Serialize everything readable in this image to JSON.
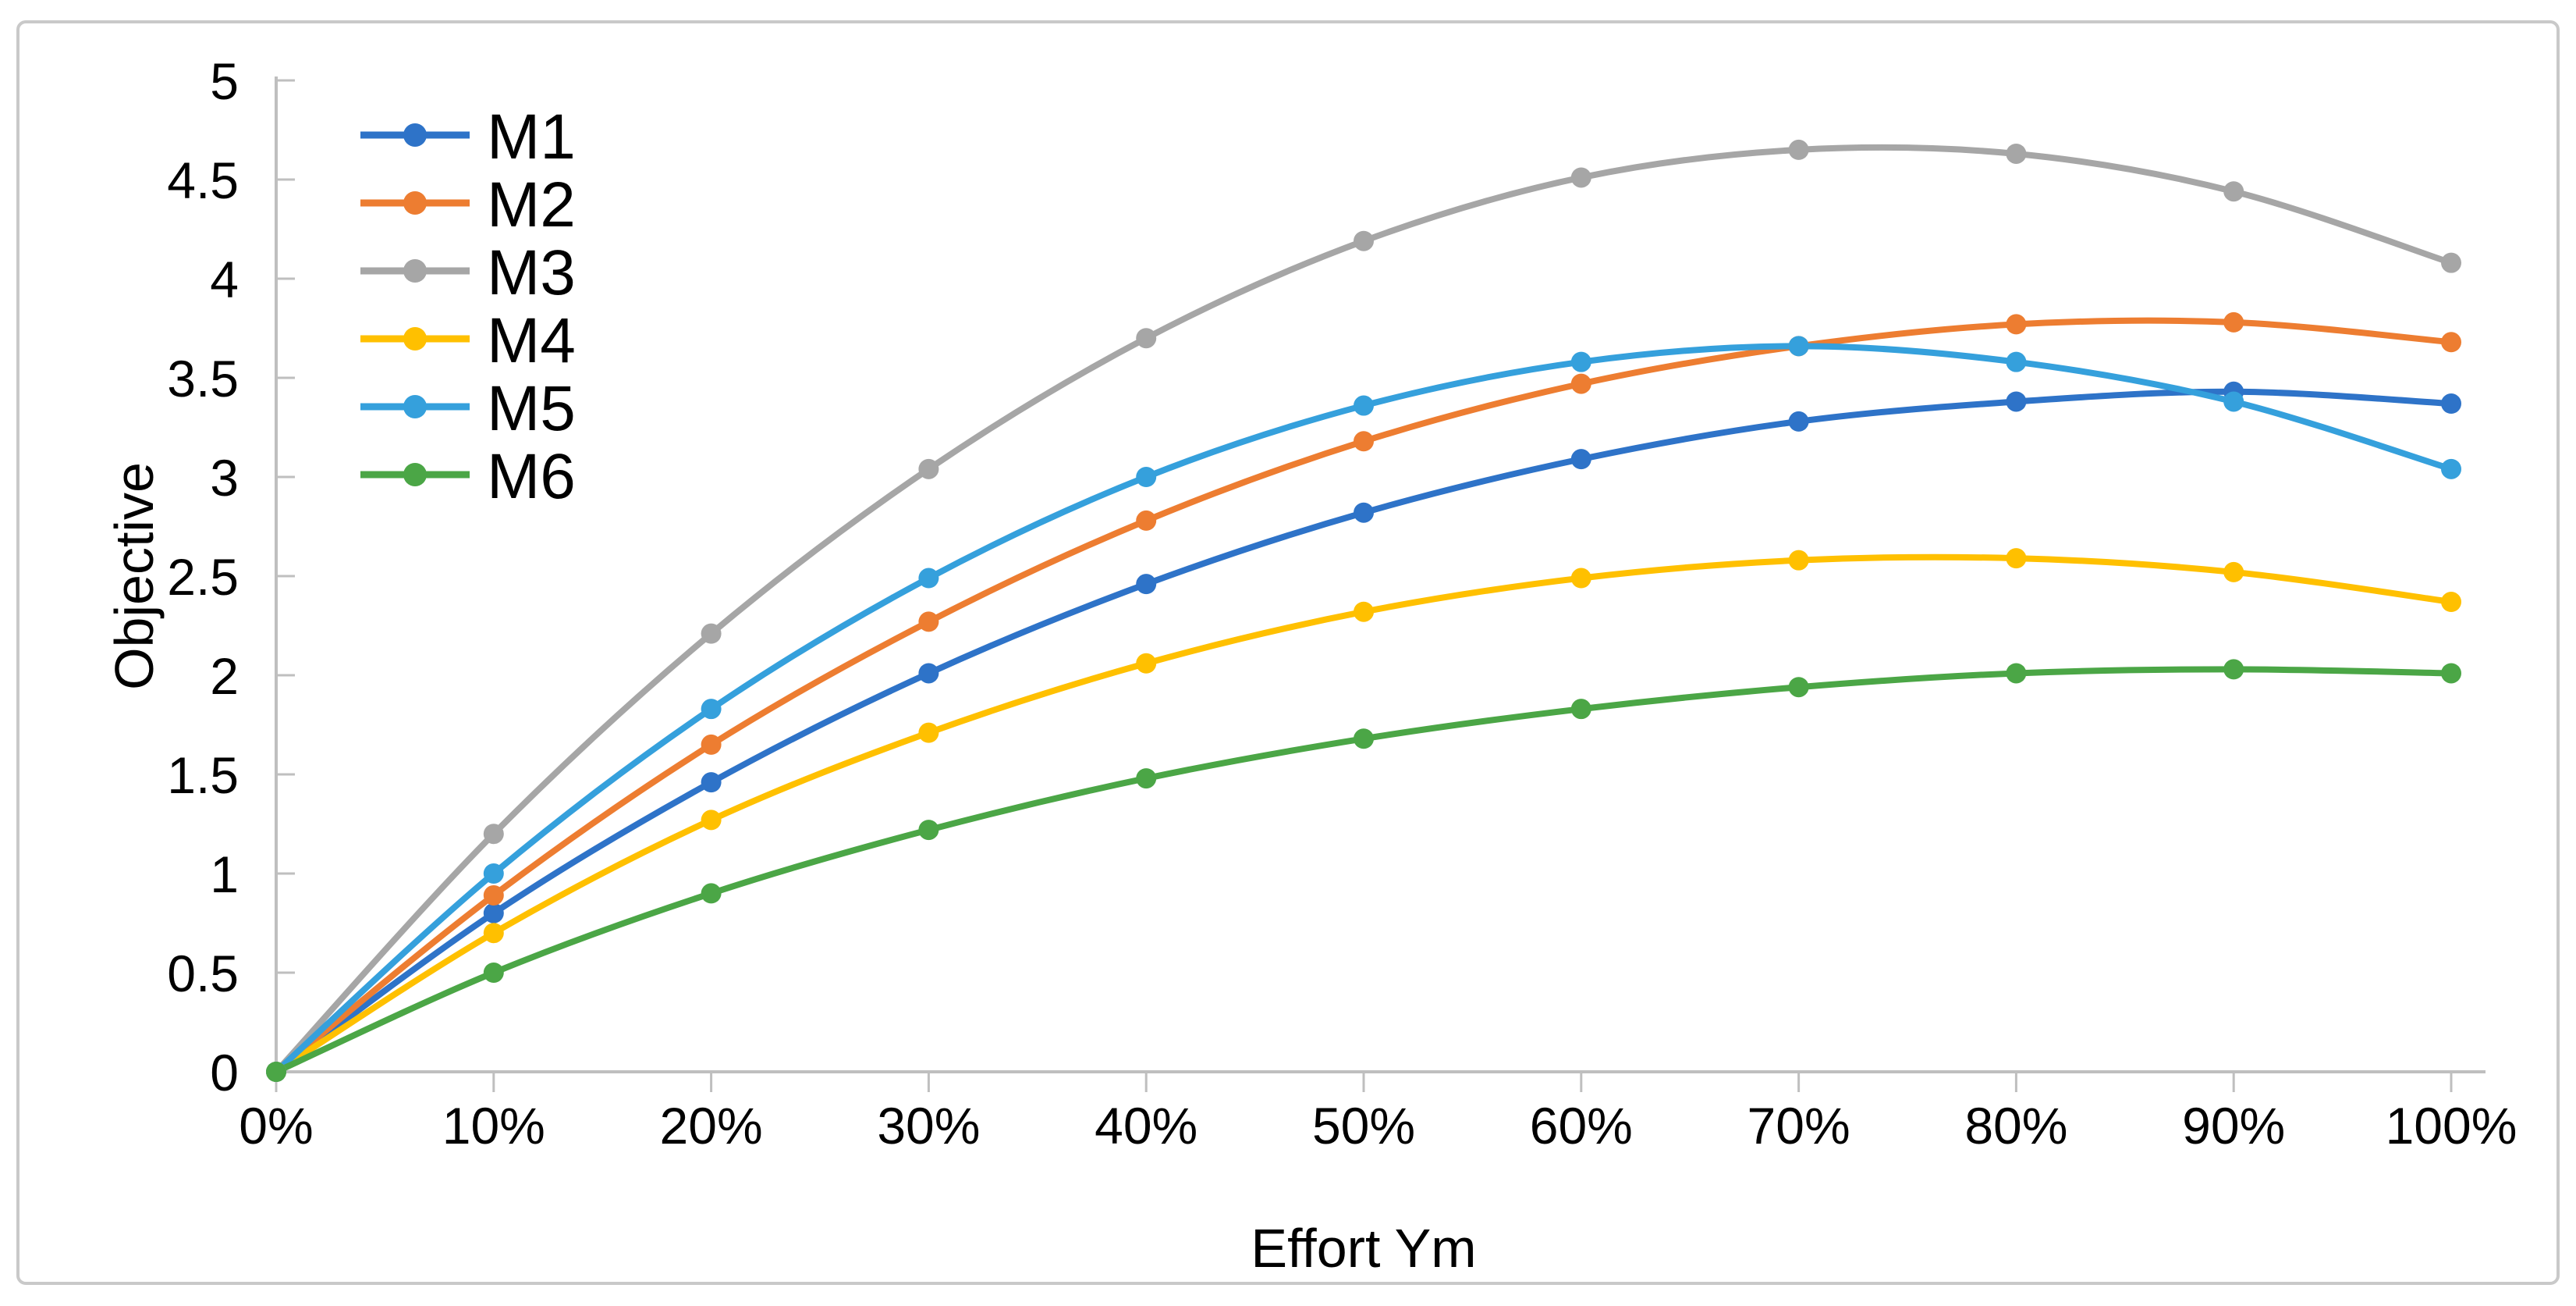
{
  "frame": {
    "background": "#ffffff",
    "border_color": "#c9c9c9"
  },
  "chart_data": {
    "type": "line",
    "x": [
      "0%",
      "10%",
      "20%",
      "30%",
      "40%",
      "50%",
      "60%",
      "70%",
      "80%",
      "90%",
      "100%"
    ],
    "series": [
      {
        "name": "M1",
        "color": "#2e73c8",
        "values": [
          0,
          0.8,
          1.46,
          2.01,
          2.46,
          2.82,
          3.09,
          3.28,
          3.38,
          3.43,
          3.37
        ]
      },
      {
        "name": "M2",
        "color": "#ed7d31",
        "values": [
          0,
          0.89,
          1.65,
          2.27,
          2.78,
          3.18,
          3.47,
          3.66,
          3.77,
          3.78,
          3.68
        ]
      },
      {
        "name": "M3",
        "color": "#a6a6a6",
        "values": [
          0,
          1.2,
          2.21,
          3.04,
          3.7,
          4.19,
          4.51,
          4.65,
          4.63,
          4.44,
          4.08
        ]
      },
      {
        "name": "M4",
        "color": "#ffc000",
        "values": [
          0,
          0.7,
          1.27,
          1.71,
          2.06,
          2.32,
          2.49,
          2.58,
          2.59,
          2.52,
          2.37
        ]
      },
      {
        "name": "M5",
        "color": "#35a0dc",
        "values": [
          0,
          1.0,
          1.83,
          2.49,
          3.0,
          3.36,
          3.58,
          3.66,
          3.58,
          3.38,
          3.04
        ]
      },
      {
        "name": "M6",
        "color": "#4ba646",
        "values": [
          0,
          0.5,
          0.9,
          1.22,
          1.48,
          1.68,
          1.83,
          1.94,
          2.01,
          2.03,
          2.01
        ]
      }
    ],
    "title": "",
    "xlabel": "Effort Ym",
    "ylabel": "Objective",
    "ylim": [
      0,
      5
    ],
    "ytick_step": 0.5,
    "ytick_labels": [
      "0",
      "0.5",
      "1",
      "1.5",
      "2",
      "2.5",
      "3",
      "3.5",
      "4",
      "4.5",
      "5"
    ],
    "grid": false,
    "legend_position": "top-left",
    "smooth": true,
    "marker": "circle",
    "axis_color": "#bfbfbf",
    "text_color": "#000000"
  }
}
